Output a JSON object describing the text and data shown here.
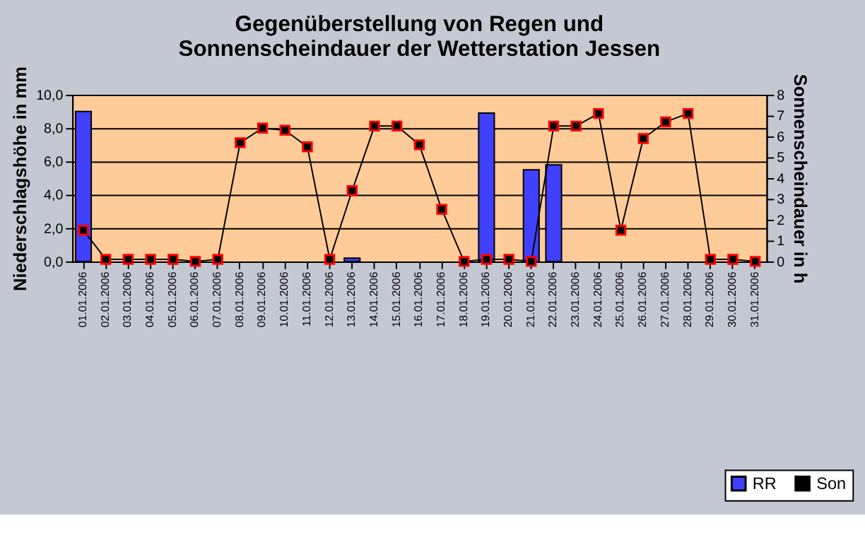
{
  "chart_data": {
    "type": "bar",
    "title": "Gegenüberstellung von Regen und Sonnenscheindauer der Wetterstation Jessen",
    "xlabel": null,
    "ylabel": "Niederschlagshöhe in mm",
    "y2label": "Sonnenscheindauer in h",
    "categories": [
      "01.01.2006",
      "02.01.2006",
      "03.01.2006",
      "04.01.2006",
      "05.01.2006",
      "06.01.2006",
      "07.01.2006",
      "08.01.2006",
      "09.01.2006",
      "10.01.2006",
      "11.01.2006",
      "12.01.2006",
      "13.01.2006",
      "14.01.2006",
      "15.01.2006",
      "16.01.2006",
      "17.01.2006",
      "18.01.2006",
      "19.01.2006",
      "20.01.2006",
      "21.01.2006",
      "22.01.2006",
      "23.01.2006",
      "24.01.2006",
      "25.01.2006",
      "26.01.2006",
      "27.01.2006",
      "28.01.2006",
      "29.01.2006",
      "30.01.2006",
      "31.01.2006"
    ],
    "series": [
      {
        "name": "RR",
        "color": "#4040ff",
        "values": [
          9.0,
          0,
          0,
          0,
          0,
          0,
          0,
          0,
          0,
          0,
          0,
          0,
          0.2,
          0,
          0,
          0,
          0,
          0,
          8.9,
          0,
          5.5,
          5.8,
          0,
          0,
          0,
          0,
          0,
          0,
          0,
          0,
          0
        ]
      },
      {
        "name": "Son",
        "type": "line",
        "axis": "y2",
        "color": "#000000",
        "marker": "square",
        "values": [
          1.5,
          0.1,
          0.1,
          0.1,
          0.1,
          0,
          0.1,
          5.7,
          6.4,
          6.3,
          5.5,
          0.1,
          3.4,
          6.5,
          6.5,
          5.6,
          2.5,
          0,
          0.1,
          0.1,
          0,
          6.5,
          6.5,
          7.1,
          1.5,
          5.9,
          6.7,
          7.1,
          0.1,
          0.1,
          0
        ]
      }
    ],
    "ylim": [
      0,
      10
    ],
    "yticks": [
      {
        "value": 0,
        "label": "0,0"
      },
      {
        "value": 2,
        "label": "2,0"
      },
      {
        "value": 4,
        "label": "4,0"
      },
      {
        "value": 6,
        "label": "6,0"
      },
      {
        "value": 8,
        "label": "8,0"
      },
      {
        "value": 10,
        "label": "10,0"
      }
    ],
    "y2lim": [
      0,
      8
    ],
    "y2ticks": [
      0,
      1,
      2,
      3,
      4,
      5,
      6,
      7,
      8
    ],
    "grid": "y",
    "legend": "bottom right"
  }
}
